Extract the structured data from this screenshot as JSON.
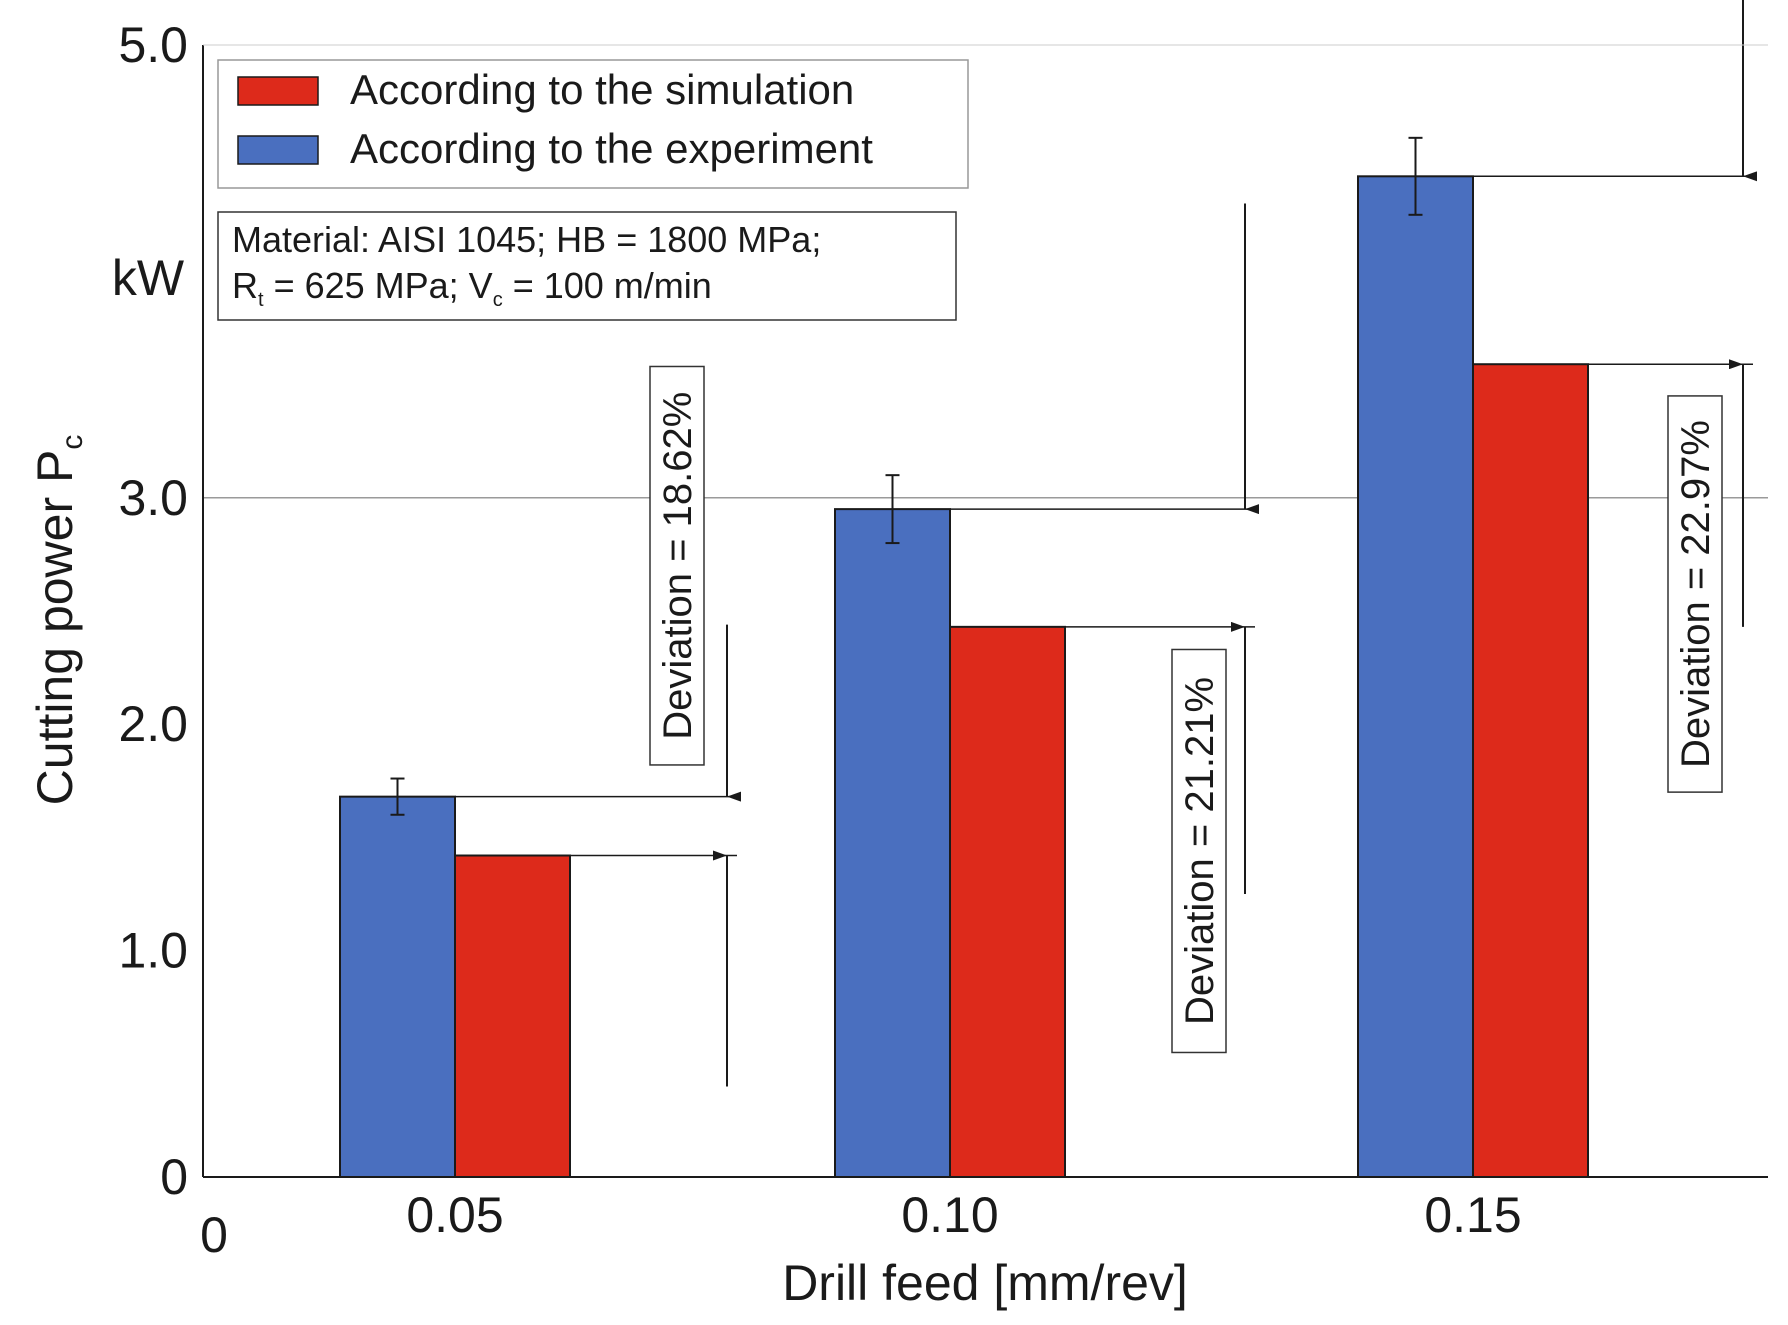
{
  "chart_data": {
    "type": "bar",
    "title": "",
    "xlabel": "Drill feed [mm/rev]",
    "ylabel_text": "Cutting power P",
    "ylabel_sub": "c",
    "yunit": "kW",
    "x_origin_label": "0",
    "ylim": [
      0,
      5.0
    ],
    "grid_y": [
      3.0
    ],
    "y_ticks": [
      {
        "value": 0,
        "label": "0"
      },
      {
        "value": 1.0,
        "label": "1.0"
      },
      {
        "value": 2.0,
        "label": "2.0"
      },
      {
        "value": 3.0,
        "label": "3.0"
      },
      {
        "value": 5.0,
        "label": "5.0"
      }
    ],
    "categories": [
      "0.05",
      "0.10",
      "0.15"
    ],
    "series": [
      {
        "name": "According to the experiment",
        "color": "#4a6fbf",
        "values": [
          1.68,
          2.95,
          4.42
        ],
        "err": [
          0.08,
          0.15,
          0.17
        ]
      },
      {
        "name": "According to the simulation",
        "color": "#dd2a1b",
        "values": [
          1.42,
          2.43,
          3.59
        ]
      }
    ],
    "legend": {
      "placement": "top-left",
      "entries": [
        {
          "label": "According to the simulation",
          "color": "#dd2a1b"
        },
        {
          "label": "According to the experiment",
          "color": "#4a6fbf"
        }
      ]
    },
    "info_box": {
      "line1": "Material: AISI 1045; HB = 1800 MPa;",
      "line2_r": "R",
      "line2_r_sub": "t",
      "line2_mid": " = 625 MPa; V",
      "line2_v_sub": "c",
      "line2_end": " = 100 m/min"
    },
    "annotations": [
      {
        "text": "Deviation = 18.62%",
        "category": "0.05",
        "top": 1.68,
        "bottom": 1.42
      },
      {
        "text": "Deviation = 21.21%",
        "category": "0.10",
        "top": 2.95,
        "bottom": 2.43
      },
      {
        "text": "Deviation = 22.97%",
        "category": "0.15",
        "top": 4.42,
        "bottom": 3.59
      }
    ]
  }
}
